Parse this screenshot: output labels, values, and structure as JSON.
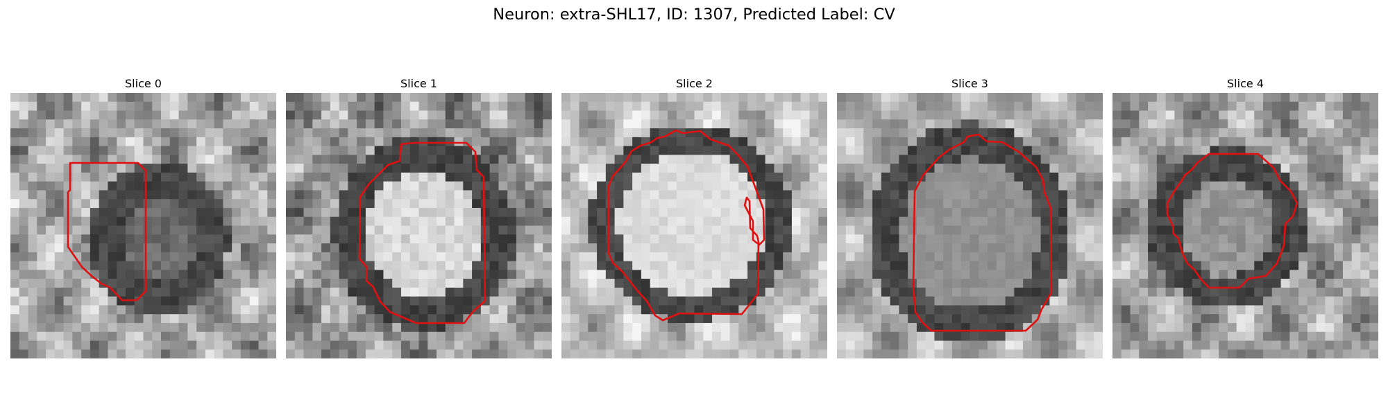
{
  "figure": {
    "title": "Neuron: extra-SHL17, ID: 1307, Predicted Label: CV"
  },
  "slices": [
    {
      "title": "Slice 0"
    },
    {
      "title": "Slice 1"
    },
    {
      "title": "Slice 2"
    },
    {
      "title": "Slice 3"
    },
    {
      "title": "Slice 4"
    }
  ],
  "colors": {
    "contour": "#e01010",
    "background": "#ffffff"
  }
}
